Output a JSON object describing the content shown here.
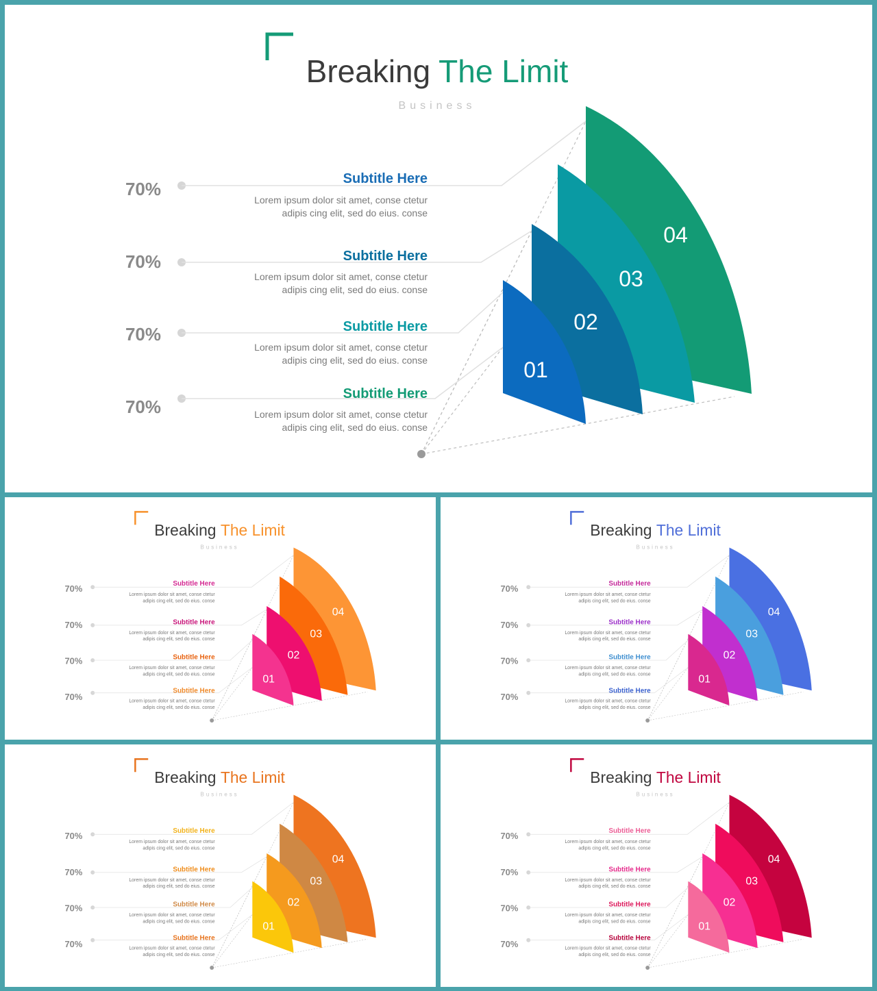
{
  "slides": [
    {
      "title_main": "Breaking ",
      "title_accent": "The Limit",
      "subtitle": "Business",
      "accent_color": "#159b77",
      "shape_colors": [
        "#0c6bbf",
        "#0b6f9f",
        "#0a9aa3",
        "#139b75"
      ],
      "items": [
        {
          "percent": "70%",
          "heading": "Subtitle Here",
          "heading_color": "#1a6db5",
          "line1": "Lorem ipsum dolor sit amet, conse ctetur",
          "line2": "adipis cing elit, sed do eius. conse"
        },
        {
          "percent": "70%",
          "heading": "Subtitle Here",
          "heading_color": "#0b6f9f",
          "line1": "Lorem ipsum dolor sit amet, conse ctetur",
          "line2": "adipis cing elit, sed do eius. conse"
        },
        {
          "percent": "70%",
          "heading": "Subtitle Here",
          "heading_color": "#0a9aa3",
          "line1": "Lorem ipsum dolor sit amet, conse ctetur",
          "line2": "adipis cing elit, sed do eius. conse"
        },
        {
          "percent": "70%",
          "heading": "Subtitle Here",
          "heading_color": "#139b75",
          "line1": "Lorem ipsum dolor sit amet, conse ctetur",
          "line2": "adipis cing elit, sed do eius. conse"
        }
      ],
      "shape_labels": [
        "01",
        "02",
        "03",
        "04"
      ]
    },
    {
      "title_main": "Breaking ",
      "title_accent": "The Limit",
      "subtitle": "Business",
      "accent_color": "#f7912b",
      "shape_colors": [
        "#f4338f",
        "#ee0f6f",
        "#fa6a0a",
        "#fd9535"
      ],
      "items": [
        {
          "percent": "70%",
          "heading": "Subtitle Here",
          "heading_color": "#d42a92",
          "line1": "Lorem ipsum dolor sit amet, conse ctetur",
          "line2": "adipis cing elit, sed do eius. conse"
        },
        {
          "percent": "70%",
          "heading": "Subtitle Here",
          "heading_color": "#c8157a",
          "line1": "Lorem ipsum dolor sit amet, conse ctetur",
          "line2": "adipis cing elit, sed do eius. conse"
        },
        {
          "percent": "70%",
          "heading": "Subtitle Here",
          "heading_color": "#e8620f",
          "line1": "Lorem ipsum dolor sit amet, conse ctetur",
          "line2": "adipis cing elit, sed do eius. conse"
        },
        {
          "percent": "70%",
          "heading": "Subtitle Here",
          "heading_color": "#f08a2a",
          "line1": "Lorem ipsum dolor sit amet, conse ctetur",
          "line2": "adipis cing elit, sed do eius. conse"
        }
      ],
      "shape_labels": [
        "01",
        "02",
        "03",
        "04"
      ]
    },
    {
      "title_main": "Breaking ",
      "title_accent": "The Limit",
      "subtitle": "Business",
      "accent_color": "#4f6ed8",
      "shape_colors": [
        "#d9288f",
        "#c12fcf",
        "#4a9fde",
        "#4a70e2"
      ],
      "items": [
        {
          "percent": "70%",
          "heading": "Subtitle Here",
          "heading_color": "#c42a9a",
          "line1": "Lorem ipsum dolor sit amet, conse ctetur",
          "line2": "adipis cing elit, sed do eius. conse"
        },
        {
          "percent": "70%",
          "heading": "Subtitle Here",
          "heading_color": "#9b2fc8",
          "line1": "Lorem ipsum dolor sit amet, conse ctetur",
          "line2": "adipis cing elit, sed do eius. conse"
        },
        {
          "percent": "70%",
          "heading": "Subtitle Here",
          "heading_color": "#3f8fd0",
          "line1": "Lorem ipsum dolor sit amet, conse ctetur",
          "line2": "adipis cing elit, sed do eius. conse"
        },
        {
          "percent": "70%",
          "heading": "Subtitle Here",
          "heading_color": "#3c62cf",
          "line1": "Lorem ipsum dolor sit amet, conse ctetur",
          "line2": "adipis cing elit, sed do eius. conse"
        }
      ],
      "shape_labels": [
        "01",
        "02",
        "03",
        "04"
      ]
    },
    {
      "title_main": "Breaking ",
      "title_accent": "The Limit",
      "subtitle": "Business",
      "accent_color": "#e8741e",
      "shape_colors": [
        "#fbc70a",
        "#f59a1e",
        "#cf8844",
        "#ee7420"
      ],
      "items": [
        {
          "percent": "70%",
          "heading": "Subtitle Here",
          "heading_color": "#f2b21a",
          "line1": "Lorem ipsum dolor sit amet, conse ctetur",
          "line2": "adipis cing elit, sed do eius. conse"
        },
        {
          "percent": "70%",
          "heading": "Subtitle Here",
          "heading_color": "#ef8d1c",
          "line1": "Lorem ipsum dolor sit amet, conse ctetur",
          "line2": "adipis cing elit, sed do eius. conse"
        },
        {
          "percent": "70%",
          "heading": "Subtitle Here",
          "heading_color": "#d08a47",
          "line1": "Lorem ipsum dolor sit amet, conse ctetur",
          "line2": "adipis cing elit, sed do eius. conse"
        },
        {
          "percent": "70%",
          "heading": "Subtitle Here",
          "heading_color": "#e8741e",
          "line1": "Lorem ipsum dolor sit amet, conse ctetur",
          "line2": "adipis cing elit, sed do eius. conse"
        }
      ],
      "shape_labels": [
        "01",
        "02",
        "03",
        "04"
      ]
    },
    {
      "title_main": "Breaking ",
      "title_accent": "The Limit",
      "subtitle": "Business",
      "accent_color": "#c0063f",
      "shape_colors": [
        "#f56a9c",
        "#f72f92",
        "#ef0c5c",
        "#c5033f"
      ],
      "items": [
        {
          "percent": "70%",
          "heading": "Subtitle Here",
          "heading_color": "#ec5d95",
          "line1": "Lorem ipsum dolor sit amet, conse ctetur",
          "line2": "adipis cing elit, sed do eius. conse"
        },
        {
          "percent": "70%",
          "heading": "Subtitle Here",
          "heading_color": "#e52a8b",
          "line1": "Lorem ipsum dolor sit amet, conse ctetur",
          "line2": "adipis cing elit, sed do eius. conse"
        },
        {
          "percent": "70%",
          "heading": "Subtitle Here",
          "heading_color": "#dc1a5c",
          "line1": "Lorem ipsum dolor sit amet, conse ctetur",
          "line2": "adipis cing elit, sed do eius. conse"
        },
        {
          "percent": "70%",
          "heading": "Subtitle Here",
          "heading_color": "#b8063e",
          "line1": "Lorem ipsum dolor sit amet, conse ctetur",
          "line2": "adipis cing elit, sed do eius. conse"
        }
      ],
      "shape_labels": [
        "01",
        "02",
        "03",
        "04"
      ]
    }
  ]
}
